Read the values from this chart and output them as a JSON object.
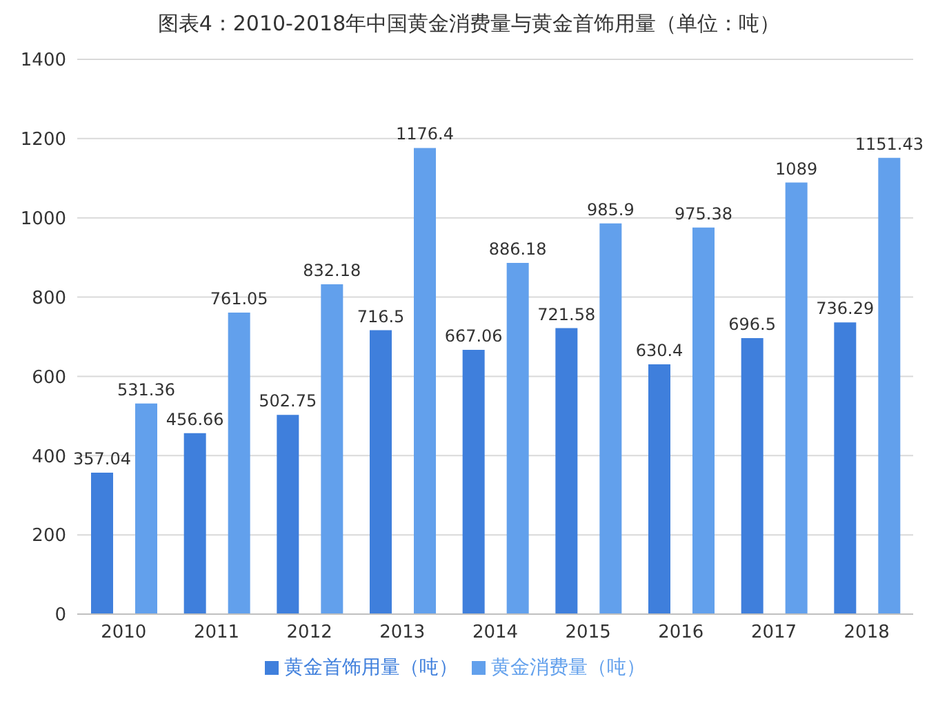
{
  "chart_data": {
    "type": "bar",
    "title": "图表4：2010-2018年中国黄金消费量与黄金首饰用量（单位：吨）",
    "categories": [
      "2010",
      "2011",
      "2012",
      "2013",
      "2014",
      "2015",
      "2016",
      "2017",
      "2018"
    ],
    "series": [
      {
        "name": "黄金首饰用量（吨）",
        "color": "#3f7fdc",
        "values": [
          357.04,
          456.66,
          502.75,
          716.5,
          667.06,
          721.58,
          630.4,
          696.5,
          736.29
        ]
      },
      {
        "name": "黄金消费量（吨）",
        "color": "#62a0ec",
        "values": [
          531.36,
          761.05,
          832.18,
          1176.4,
          886.18,
          985.9,
          975.38,
          1089,
          1151.43
        ]
      }
    ],
    "ylim": [
      0,
      1400
    ],
    "yticks": [
      0,
      200,
      400,
      600,
      800,
      1000,
      1200,
      1400
    ],
    "grid": "y",
    "legend": "bottom",
    "data_labels": true
  }
}
